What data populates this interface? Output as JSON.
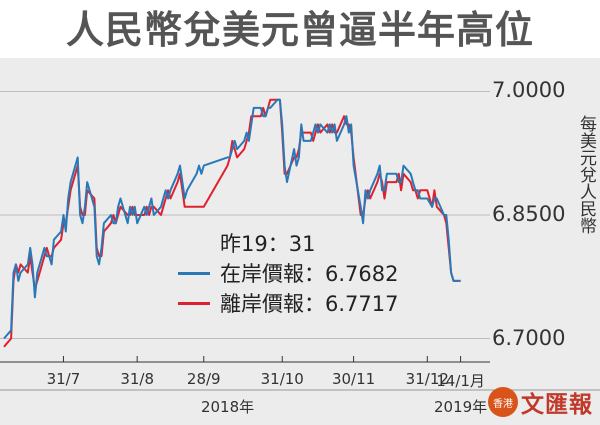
{
  "title": "人民幣兌美元曾逼半年高位",
  "chart_data": {
    "type": "line",
    "ylabel": "每美元兌人民幣",
    "ylim": [
      6.68,
      7.02
    ],
    "yticks": [
      {
        "value": 7.0,
        "label": "7.0000"
      },
      {
        "value": 6.85,
        "label": "6.8500"
      },
      {
        "value": 6.7,
        "label": "6.7000"
      }
    ],
    "xticks": [
      {
        "date": "2018-07-31",
        "label": "31/7"
      },
      {
        "date": "2018-08-31",
        "label": "31/8"
      },
      {
        "date": "2018-09-28",
        "label": "28/9"
      },
      {
        "date": "2018-10-31",
        "label": "31/10"
      },
      {
        "date": "2018-11-30",
        "label": "30/11"
      },
      {
        "date": "2018-12-31",
        "label": "31/12"
      },
      {
        "date": "2019-01-14",
        "label": "14/1月"
      }
    ],
    "xlim": [
      "2018-07-06",
      "2019-01-23"
    ],
    "year_labels": [
      {
        "date": "2018-10-08",
        "label": "2018年"
      },
      {
        "date": "2019-01-14",
        "label": "2019年"
      }
    ],
    "legend": {
      "time_label": "昨19：31",
      "entries": [
        {
          "name": "在岸價報：6.7682",
          "color": "#2979b9"
        },
        {
          "name": "離岸價報：6.7717",
          "color": "#e0202f"
        }
      ]
    },
    "series": [
      {
        "name": "在岸價報",
        "color": "#2979b9",
        "points": [
          [
            "2018-07-06",
            6.7
          ],
          [
            "2018-07-09",
            6.71
          ],
          [
            "2018-07-10",
            6.78
          ],
          [
            "2018-07-11",
            6.79
          ],
          [
            "2018-07-12",
            6.77
          ],
          [
            "2018-07-13",
            6.78
          ],
          [
            "2018-07-16",
            6.79
          ],
          [
            "2018-07-17",
            6.81
          ],
          [
            "2018-07-18",
            6.79
          ],
          [
            "2018-07-19",
            6.75
          ],
          [
            "2018-07-20",
            6.78
          ],
          [
            "2018-07-23",
            6.81
          ],
          [
            "2018-07-24",
            6.8
          ],
          [
            "2018-07-25",
            6.8
          ],
          [
            "2018-07-26",
            6.79
          ],
          [
            "2018-07-27",
            6.82
          ],
          [
            "2018-07-30",
            6.83
          ],
          [
            "2018-07-31",
            6.85
          ],
          [
            "2018-08-01",
            6.83
          ],
          [
            "2018-08-02",
            6.87
          ],
          [
            "2018-08-03",
            6.89
          ],
          [
            "2018-08-06",
            6.92
          ],
          [
            "2018-08-07",
            6.85
          ],
          [
            "2018-08-08",
            6.84
          ],
          [
            "2018-08-09",
            6.86
          ],
          [
            "2018-08-10",
            6.89
          ],
          [
            "2018-08-13",
            6.86
          ],
          [
            "2018-08-14",
            6.8
          ],
          [
            "2018-08-15",
            6.79
          ],
          [
            "2018-08-16",
            6.81
          ],
          [
            "2018-08-17",
            6.84
          ],
          [
            "2018-08-20",
            6.85
          ],
          [
            "2018-08-21",
            6.84
          ],
          [
            "2018-08-22",
            6.84
          ],
          [
            "2018-08-23",
            6.86
          ],
          [
            "2018-08-24",
            6.87
          ],
          [
            "2018-08-27",
            6.84
          ],
          [
            "2018-08-28",
            6.86
          ],
          [
            "2018-08-29",
            6.85
          ],
          [
            "2018-08-30",
            6.86
          ],
          [
            "2018-08-31",
            6.84
          ],
          [
            "2018-09-03",
            6.86
          ],
          [
            "2018-09-04",
            6.85
          ],
          [
            "2018-09-05",
            6.86
          ],
          [
            "2018-09-06",
            6.87
          ],
          [
            "2018-09-07",
            6.85
          ],
          [
            "2018-09-10",
            6.86
          ],
          [
            "2018-09-11",
            6.87
          ],
          [
            "2018-09-12",
            6.88
          ],
          [
            "2018-09-13",
            6.87
          ],
          [
            "2018-09-14",
            6.88
          ],
          [
            "2018-09-17",
            6.9
          ],
          [
            "2018-09-18",
            6.91
          ],
          [
            "2018-09-19",
            6.89
          ],
          [
            "2018-09-20",
            6.87
          ],
          [
            "2018-09-21",
            6.88
          ],
          [
            "2018-09-25",
            6.9
          ],
          [
            "2018-09-26",
            6.91
          ],
          [
            "2018-09-27",
            6.9
          ],
          [
            "2018-09-28",
            6.91
          ],
          [
            "2018-10-08",
            6.92
          ],
          [
            "2018-10-09",
            6.92
          ],
          [
            "2018-10-10",
            6.93
          ],
          [
            "2018-10-11",
            6.94
          ],
          [
            "2018-10-12",
            6.93
          ],
          [
            "2018-10-15",
            6.94
          ],
          [
            "2018-10-16",
            6.95
          ],
          [
            "2018-10-17",
            6.94
          ],
          [
            "2018-10-18",
            6.96
          ],
          [
            "2018-10-19",
            6.98
          ],
          [
            "2018-10-22",
            6.98
          ],
          [
            "2018-10-23",
            6.97
          ],
          [
            "2018-10-24",
            6.97
          ],
          [
            "2018-10-25",
            6.98
          ],
          [
            "2018-10-26",
            6.98
          ],
          [
            "2018-10-29",
            6.99
          ],
          [
            "2018-10-30",
            6.99
          ],
          [
            "2018-10-31",
            6.96
          ],
          [
            "2018-11-01",
            6.91
          ],
          [
            "2018-11-02",
            6.89
          ],
          [
            "2018-11-05",
            6.93
          ],
          [
            "2018-11-06",
            6.91
          ],
          [
            "2018-11-07",
            6.92
          ],
          [
            "2018-11-08",
            6.96
          ],
          [
            "2018-11-09",
            6.94
          ],
          [
            "2018-11-12",
            6.94
          ],
          [
            "2018-11-13",
            6.95
          ],
          [
            "2018-11-14",
            6.96
          ],
          [
            "2018-11-15",
            6.95
          ],
          [
            "2018-11-16",
            6.96
          ],
          [
            "2018-11-19",
            6.95
          ],
          [
            "2018-11-20",
            6.96
          ],
          [
            "2018-11-21",
            6.95
          ],
          [
            "2018-11-22",
            6.96
          ],
          [
            "2018-11-23",
            6.94
          ],
          [
            "2018-11-26",
            6.96
          ],
          [
            "2018-11-27",
            6.97
          ],
          [
            "2018-11-28",
            6.95
          ],
          [
            "2018-11-29",
            6.96
          ],
          [
            "2018-11-30",
            6.91
          ],
          [
            "2018-12-03",
            6.86
          ],
          [
            "2018-12-04",
            6.84
          ],
          [
            "2018-12-05",
            6.88
          ],
          [
            "2018-12-06",
            6.87
          ],
          [
            "2018-12-07",
            6.88
          ],
          [
            "2018-12-10",
            6.9
          ],
          [
            "2018-12-11",
            6.91
          ],
          [
            "2018-12-12",
            6.88
          ],
          [
            "2018-12-13",
            6.88
          ],
          [
            "2018-12-14",
            6.9
          ],
          [
            "2018-12-17",
            6.9
          ],
          [
            "2018-12-18",
            6.9
          ],
          [
            "2018-12-19",
            6.89
          ],
          [
            "2018-12-20",
            6.89
          ],
          [
            "2018-12-21",
            6.91
          ],
          [
            "2018-12-24",
            6.9
          ],
          [
            "2018-12-25",
            6.89
          ],
          [
            "2018-12-26",
            6.88
          ],
          [
            "2018-12-27",
            6.88
          ],
          [
            "2018-12-28",
            6.87
          ],
          [
            "2018-12-31",
            6.87
          ],
          [
            "2019-01-02",
            6.86
          ],
          [
            "2019-01-03",
            6.87
          ],
          [
            "2019-01-04",
            6.87
          ],
          [
            "2019-01-07",
            6.85
          ],
          [
            "2019-01-08",
            6.85
          ],
          [
            "2019-01-09",
            6.82
          ],
          [
            "2019-01-10",
            6.78
          ],
          [
            "2019-01-11",
            6.77
          ],
          [
            "2019-01-14",
            6.77
          ]
        ]
      },
      {
        "name": "離岸價報",
        "color": "#e0202f",
        "points": [
          [
            "2018-07-06",
            6.69
          ],
          [
            "2018-07-09",
            6.7
          ],
          [
            "2018-07-10",
            6.77
          ],
          [
            "2018-07-11",
            6.79
          ],
          [
            "2018-07-12",
            6.78
          ],
          [
            "2018-07-13",
            6.79
          ],
          [
            "2018-07-16",
            6.78
          ],
          [
            "2018-07-17",
            6.8
          ],
          [
            "2018-07-18",
            6.78
          ],
          [
            "2018-07-19",
            6.76
          ],
          [
            "2018-07-20",
            6.77
          ],
          [
            "2018-07-23",
            6.8
          ],
          [
            "2018-07-24",
            6.81
          ],
          [
            "2018-07-25",
            6.8
          ],
          [
            "2018-07-26",
            6.8
          ],
          [
            "2018-07-27",
            6.81
          ],
          [
            "2018-07-30",
            6.82
          ],
          [
            "2018-07-31",
            6.84
          ],
          [
            "2018-08-01",
            6.84
          ],
          [
            "2018-08-02",
            6.86
          ],
          [
            "2018-08-03",
            6.88
          ],
          [
            "2018-08-06",
            6.91
          ],
          [
            "2018-08-07",
            6.86
          ],
          [
            "2018-08-08",
            6.85
          ],
          [
            "2018-08-09",
            6.85
          ],
          [
            "2018-08-10",
            6.88
          ],
          [
            "2018-08-13",
            6.87
          ],
          [
            "2018-08-14",
            6.81
          ],
          [
            "2018-08-15",
            6.8
          ],
          [
            "2018-08-16",
            6.8
          ],
          [
            "2018-08-17",
            6.83
          ],
          [
            "2018-08-20",
            6.84
          ],
          [
            "2018-08-21",
            6.85
          ],
          [
            "2018-08-22",
            6.84
          ],
          [
            "2018-08-23",
            6.85
          ],
          [
            "2018-08-24",
            6.86
          ],
          [
            "2018-08-27",
            6.85
          ],
          [
            "2018-08-28",
            6.85
          ],
          [
            "2018-08-29",
            6.86
          ],
          [
            "2018-08-30",
            6.85
          ],
          [
            "2018-08-31",
            6.85
          ],
          [
            "2018-09-03",
            6.85
          ],
          [
            "2018-09-04",
            6.86
          ],
          [
            "2018-09-05",
            6.85
          ],
          [
            "2018-09-06",
            6.86
          ],
          [
            "2018-09-07",
            6.86
          ],
          [
            "2018-09-10",
            6.85
          ],
          [
            "2018-09-11",
            6.86
          ],
          [
            "2018-09-12",
            6.87
          ],
          [
            "2018-09-13",
            6.88
          ],
          [
            "2018-09-14",
            6.87
          ],
          [
            "2018-09-17",
            6.89
          ],
          [
            "2018-09-18",
            6.9
          ],
          [
            "2018-09-19",
            6.88
          ],
          [
            "2018-09-20",
            6.86
          ],
          [
            "2018-09-21",
            6.86
          ],
          [
            "2018-09-25",
            6.86
          ],
          [
            "2018-09-26",
            6.86
          ],
          [
            "2018-09-27",
            6.86
          ],
          [
            "2018-09-28",
            6.86
          ],
          [
            "2018-10-08",
            6.91
          ],
          [
            "2018-10-09",
            6.92
          ],
          [
            "2018-10-10",
            6.94
          ],
          [
            "2018-10-11",
            6.93
          ],
          [
            "2018-10-12",
            6.92
          ],
          [
            "2018-10-15",
            6.93
          ],
          [
            "2018-10-16",
            6.94
          ],
          [
            "2018-10-17",
            6.95
          ],
          [
            "2018-10-18",
            6.97
          ],
          [
            "2018-10-19",
            6.97
          ],
          [
            "2018-10-22",
            6.97
          ],
          [
            "2018-10-23",
            6.98
          ],
          [
            "2018-10-24",
            6.97
          ],
          [
            "2018-10-25",
            6.98
          ],
          [
            "2018-10-26",
            6.99
          ],
          [
            "2018-10-29",
            6.99
          ],
          [
            "2018-10-30",
            6.99
          ],
          [
            "2018-10-31",
            6.95
          ],
          [
            "2018-11-01",
            6.9
          ],
          [
            "2018-11-02",
            6.9
          ],
          [
            "2018-11-05",
            6.92
          ],
          [
            "2018-11-06",
            6.92
          ],
          [
            "2018-11-07",
            6.93
          ],
          [
            "2018-11-08",
            6.95
          ],
          [
            "2018-11-09",
            6.95
          ],
          [
            "2018-11-12",
            6.95
          ],
          [
            "2018-11-13",
            6.94
          ],
          [
            "2018-11-14",
            6.95
          ],
          [
            "2018-11-15",
            6.96
          ],
          [
            "2018-11-16",
            6.95
          ],
          [
            "2018-11-19",
            6.96
          ],
          [
            "2018-11-20",
            6.95
          ],
          [
            "2018-11-21",
            6.96
          ],
          [
            "2018-11-22",
            6.95
          ],
          [
            "2018-11-23",
            6.95
          ],
          [
            "2018-11-26",
            6.97
          ],
          [
            "2018-11-27",
            6.96
          ],
          [
            "2018-11-28",
            6.96
          ],
          [
            "2018-11-29",
            6.95
          ],
          [
            "2018-11-30",
            6.92
          ],
          [
            "2018-12-03",
            6.85
          ],
          [
            "2018-12-04",
            6.85
          ],
          [
            "2018-12-05",
            6.87
          ],
          [
            "2018-12-06",
            6.88
          ],
          [
            "2018-12-07",
            6.87
          ],
          [
            "2018-12-10",
            6.89
          ],
          [
            "2018-12-11",
            6.9
          ],
          [
            "2018-12-12",
            6.89
          ],
          [
            "2018-12-13",
            6.87
          ],
          [
            "2018-12-14",
            6.89
          ],
          [
            "2018-12-17",
            6.89
          ],
          [
            "2018-12-18",
            6.89
          ],
          [
            "2018-12-19",
            6.9
          ],
          [
            "2018-12-20",
            6.88
          ],
          [
            "2018-12-21",
            6.9
          ],
          [
            "2018-12-24",
            6.89
          ],
          [
            "2018-12-25",
            6.88
          ],
          [
            "2018-12-26",
            6.88
          ],
          [
            "2018-12-27",
            6.87
          ],
          [
            "2018-12-28",
            6.88
          ],
          [
            "2018-12-31",
            6.88
          ],
          [
            "2019-01-02",
            6.86
          ],
          [
            "2019-01-03",
            6.88
          ],
          [
            "2019-01-04",
            6.86
          ],
          [
            "2019-01-07",
            6.85
          ],
          [
            "2019-01-08",
            6.84
          ],
          [
            "2019-01-09",
            6.81
          ],
          [
            "2019-01-10",
            6.78
          ],
          [
            "2019-01-11",
            6.77
          ],
          [
            "2019-01-14",
            6.77
          ]
        ]
      }
    ]
  },
  "logo": {
    "mark_text": "香港",
    "text": "文匯報"
  }
}
